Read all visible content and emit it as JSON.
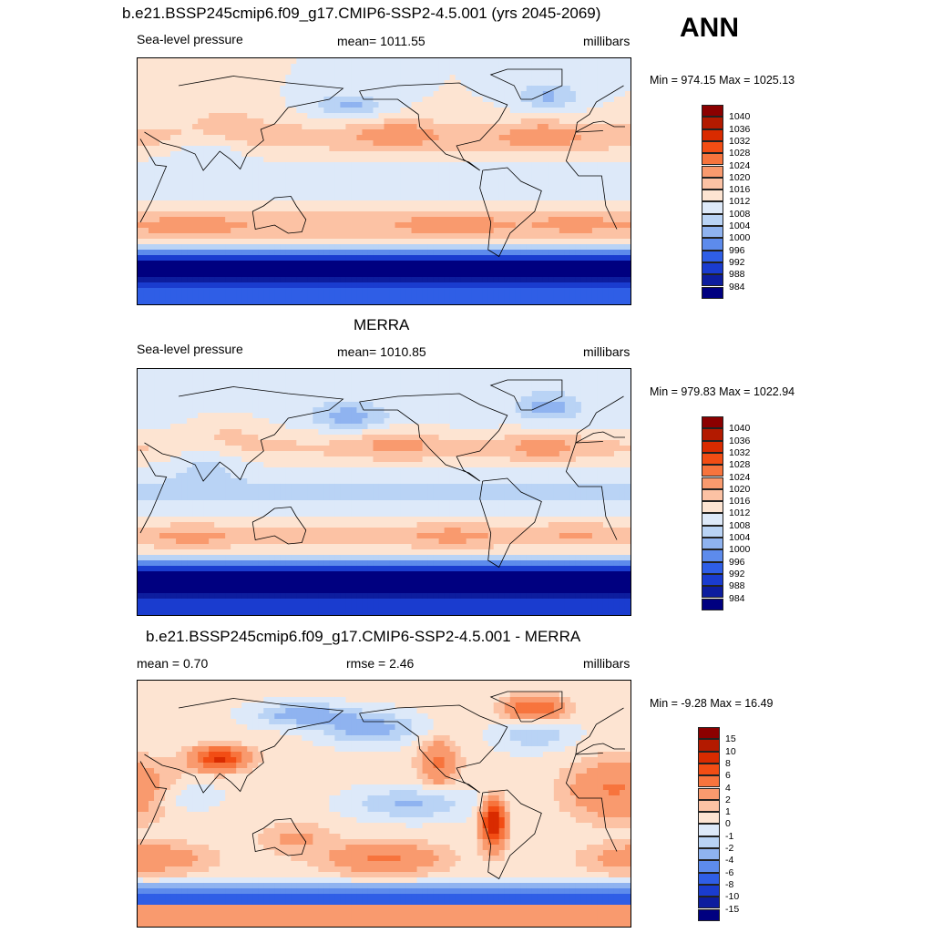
{
  "season": "ANN",
  "chart_data": [
    {
      "type": "heatmap",
      "title": "b.e21.BSSP245cmip6.f09_g17.CMIP6-SSP2-4.5.001 (yrs 2045-2069)",
      "left_label": "Sea-level pressure",
      "center_label": "mean= 1011.55",
      "right_label": "millibars",
      "minmax": "Min = 974.15 Max = 1025.13",
      "levels": [
        "1040",
        "1036",
        "1032",
        "1028",
        "1024",
        "1020",
        "1016",
        "1012",
        "1008",
        "1004",
        "1000",
        "996",
        "992",
        "988",
        "984"
      ],
      "colors": [
        "#8b0000",
        "#b31a00",
        "#d92b00",
        "#f24d14",
        "#f7743d",
        "#f99a6e",
        "#fcc2a4",
        "#fde4d2",
        "#dde9f9",
        "#b9d3f5",
        "#8fb3f0",
        "#5d8bec",
        "#2f5ee6",
        "#1a3ccf",
        "#0d1d9e",
        "#000080"
      ],
      "mean": 1011.55,
      "min": 974.15,
      "max": 1025.13
    },
    {
      "type": "heatmap",
      "title": "MERRA",
      "left_label": "Sea-level pressure",
      "center_label": "mean= 1010.85",
      "right_label": "millibars",
      "minmax": "Min = 979.83 Max = 1022.94",
      "levels": [
        "1040",
        "1036",
        "1032",
        "1028",
        "1024",
        "1020",
        "1016",
        "1012",
        "1008",
        "1004",
        "1000",
        "996",
        "992",
        "988",
        "984"
      ],
      "colors": [
        "#8b0000",
        "#b31a00",
        "#d92b00",
        "#f24d14",
        "#f7743d",
        "#f99a6e",
        "#fcc2a4",
        "#fde4d2",
        "#dde9f9",
        "#b9d3f5",
        "#8fb3f0",
        "#5d8bec",
        "#2f5ee6",
        "#1a3ccf",
        "#0d1d9e",
        "#000080"
      ],
      "mean": 1010.85,
      "min": 979.83,
      "max": 1022.94
    },
    {
      "type": "heatmap",
      "title": "b.e21.BSSP245cmip6.f09_g17.CMIP6-SSP2-4.5.001 - MERRA",
      "left_label": "mean =   0.70",
      "center_label": "rmse =   2.46",
      "right_label": "millibars",
      "minmax": "Min =  -9.28 Max =  16.49",
      "levels": [
        "15",
        "10",
        "8",
        "6",
        "4",
        "2",
        "1",
        "0",
        "-1",
        "-2",
        "-4",
        "-6",
        "-8",
        "-10",
        "-15"
      ],
      "colors": [
        "#8b0000",
        "#b31a00",
        "#d92b00",
        "#f24d14",
        "#f7743d",
        "#f99a6e",
        "#fcc2a4",
        "#fde4d2",
        "#dde9f9",
        "#b9d3f5",
        "#8fb3f0",
        "#5d8bec",
        "#2f5ee6",
        "#1a3ccf",
        "#0d1d9e",
        "#000080"
      ],
      "mean": 0.7,
      "rmse": 2.46,
      "min": -9.28,
      "max": 16.49
    }
  ]
}
